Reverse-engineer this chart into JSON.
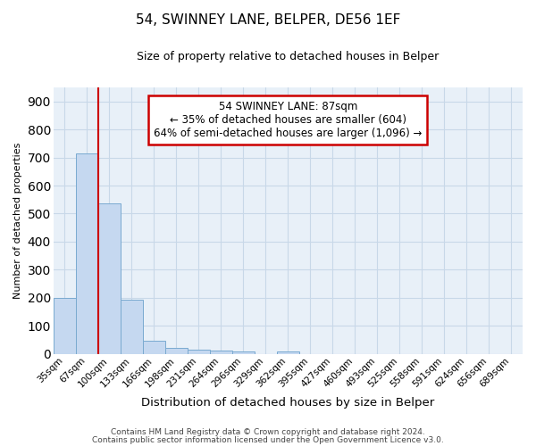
{
  "title": "54, SWINNEY LANE, BELPER, DE56 1EF",
  "subtitle": "Size of property relative to detached houses in Belper",
  "xlabel": "Distribution of detached houses by size in Belper",
  "ylabel": "Number of detached properties",
  "footer1": "Contains HM Land Registry data © Crown copyright and database right 2024.",
  "footer2": "Contains public sector information licensed under the Open Government Licence v3.0.",
  "annotation_line1": "54 SWINNEY LANE: 87sqm",
  "annotation_line2": "← 35% of detached houses are smaller (604)",
  "annotation_line3": "64% of semi-detached houses are larger (1,096) →",
  "bar_labels": [
    "35sqm",
    "67sqm",
    "100sqm",
    "133sqm",
    "166sqm",
    "198sqm",
    "231sqm",
    "264sqm",
    "296sqm",
    "329sqm",
    "362sqm",
    "395sqm",
    "427sqm",
    "460sqm",
    "493sqm",
    "525sqm",
    "558sqm",
    "591sqm",
    "624sqm",
    "656sqm",
    "689sqm"
  ],
  "bar_values": [
    200,
    714,
    535,
    193,
    46,
    20,
    15,
    12,
    8,
    0,
    7,
    0,
    0,
    0,
    0,
    0,
    0,
    0,
    0,
    0,
    0
  ],
  "bar_color": "#c5d8f0",
  "bar_edge_color": "#7aaad0",
  "red_line_bin": 1.5,
  "ylim": [
    0,
    950
  ],
  "yticks": [
    0,
    100,
    200,
    300,
    400,
    500,
    600,
    700,
    800,
    900
  ],
  "red_line_color": "#cc0000",
  "annotation_box_color": "#cc0000",
  "grid_color": "#c8d8e8",
  "background_color": "#e8f0f8",
  "title_fontsize": 11,
  "subtitle_fontsize": 9,
  "ylabel_fontsize": 8,
  "xlabel_fontsize": 9.5,
  "tick_fontsize": 7.5,
  "footer_fontsize": 6.5,
  "ann_fontsize": 8.5
}
